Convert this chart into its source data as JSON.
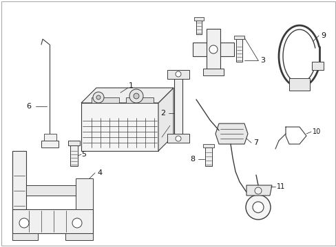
{
  "background_color": "#ffffff",
  "line_color": "#3a3a3a",
  "label_color": "#111111",
  "figsize": [
    4.89,
    3.6
  ],
  "dpi": 100,
  "border_color": "#cccccc"
}
